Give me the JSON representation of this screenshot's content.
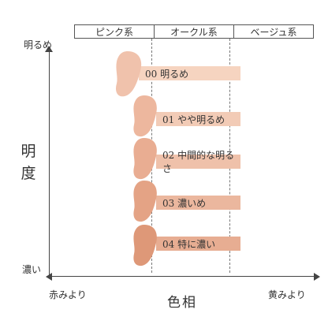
{
  "header": {
    "cells": [
      "ピンク系",
      "オークル系",
      "ベージュ系"
    ]
  },
  "axes": {
    "vertical_top": "明るめ",
    "vertical_bottom": "濃い",
    "vertical_title": "明度",
    "horizontal_left": "赤みより",
    "horizontal_right": "黄みより",
    "horizontal_title": "色相"
  },
  "shades": [
    {
      "label": "00 明るめ",
      "color": "#F6D4C0",
      "swatch": "#F0C2AC"
    },
    {
      "label": "01 やや明るめ",
      "color": "#F2CBB6",
      "swatch": "#EDB79E"
    },
    {
      "label": "02 中間的な明るさ",
      "color": "#EFC1AA",
      "swatch": "#E9AD92"
    },
    {
      "label": "03 濃いめ",
      "color": "#EBB79E",
      "swatch": "#E4A385"
    },
    {
      "label": "04 特に濃い",
      "color": "#E7AD92",
      "swatch": "#DE9878"
    }
  ]
}
